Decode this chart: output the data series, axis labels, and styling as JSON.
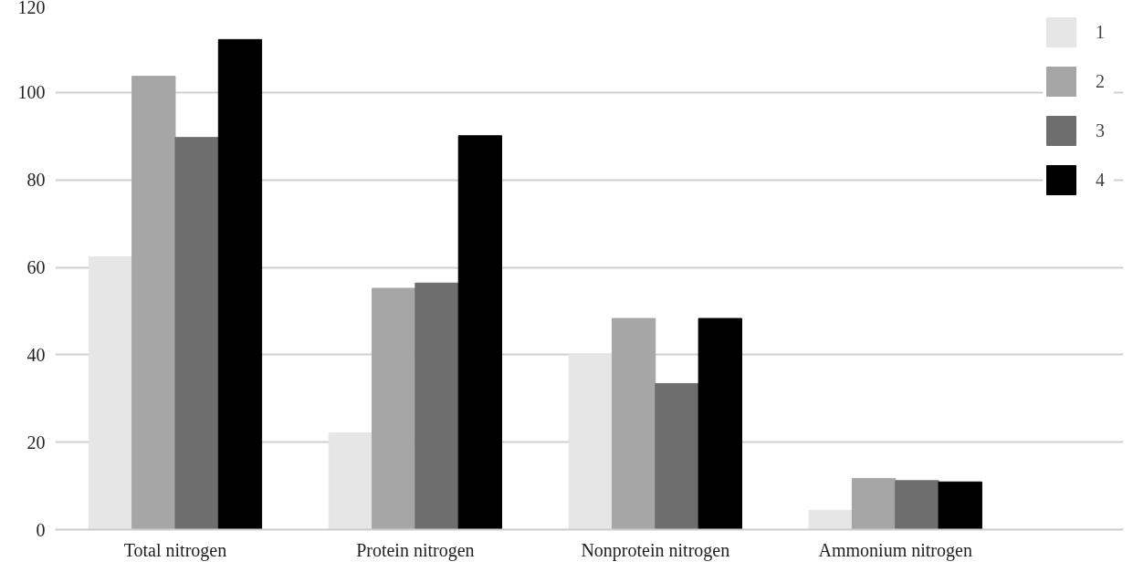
{
  "chart_data": {
    "type": "bar",
    "categories": [
      "Total nitrogen",
      "Protein nitrogen",
      "Nonprotein nitrogen",
      "Ammonium nitrogen"
    ],
    "series": [
      {
        "name": "1",
        "color": "#e6e6e6",
        "values": [
          62.4,
          22.1,
          40,
          4.4
        ]
      },
      {
        "name": "2",
        "color": "#a6a6a6",
        "values": [
          103.7,
          55.2,
          48.3,
          11.7
        ]
      },
      {
        "name": "3",
        "color": "#6e6e6e",
        "values": [
          89.7,
          56.4,
          33.4,
          11.2
        ]
      },
      {
        "name": "4",
        "color": "#000000",
        "values": [
          112.1,
          90.1,
          48.3,
          10.9
        ]
      }
    ],
    "ylim": [
      0,
      120
    ],
    "yticks": [
      0,
      20,
      40,
      60,
      80,
      100,
      120
    ],
    "grid": "y",
    "legend": "top right"
  }
}
